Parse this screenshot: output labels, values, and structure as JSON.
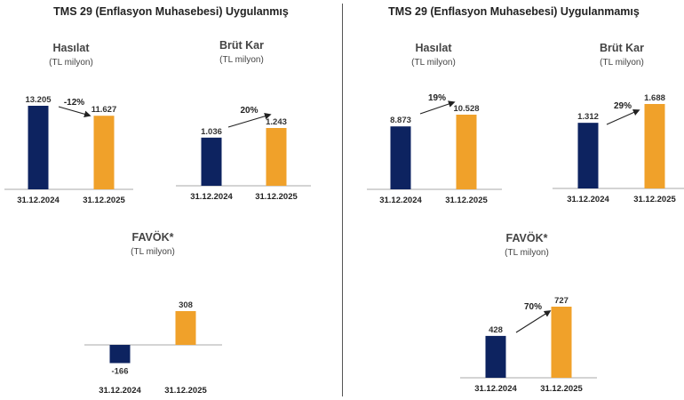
{
  "panels": {
    "left_title": "TMS 29 (Enflasyon Muhasebesi) Uygulanmış",
    "right_title": "TMS 29 (Enflasyon Muhasebesi) Uygulanmamış"
  },
  "colors": {
    "navy": "#0d2360",
    "orange": "#f0a12a",
    "axis": "#aaaaaa",
    "arrow": "#222222"
  },
  "chart_data": [
    {
      "type": "bar",
      "panel": "TMS 29 (Enflasyon Muhasebesi) Uygulanmış",
      "title": "Hasılat",
      "unit": "(TL milyon)",
      "categories": [
        "31.12.2024",
        "31.12.2025"
      ],
      "values": [
        13205,
        11627
      ],
      "value_labels": [
        "13.205",
        "11.627"
      ],
      "change_label": "-12%"
    },
    {
      "type": "bar",
      "panel": "TMS 29 (Enflasyon Muhasebesi) Uygulanmış",
      "title": "Brüt Kar",
      "unit": "(TL milyon)",
      "categories": [
        "31.12.2024",
        "31.12.2025"
      ],
      "values": [
        1036,
        1243
      ],
      "value_labels": [
        "1.036",
        "1.243"
      ],
      "change_label": "20%"
    },
    {
      "type": "bar",
      "panel": "TMS 29 (Enflasyon Muhasebesi) Uygulanmış",
      "title": "FAVÖK*",
      "unit": "(TL milyon)",
      "categories": [
        "31.12.2024",
        "31.12.2025"
      ],
      "values": [
        -166,
        308
      ],
      "value_labels": [
        "-166",
        "308"
      ],
      "change_label": ""
    },
    {
      "type": "bar",
      "panel": "TMS 29 (Enflasyon Muhasebesi) Uygulanmamış",
      "title": "Hasılat",
      "unit": "(TL milyon)",
      "categories": [
        "31.12.2024",
        "31.12.2025"
      ],
      "values": [
        8873,
        10528
      ],
      "value_labels": [
        "8.873",
        "10.528"
      ],
      "change_label": "19%"
    },
    {
      "type": "bar",
      "panel": "TMS 29 (Enflasyon Muhasebesi) Uygulanmamış",
      "title": "Brüt Kar",
      "unit": "(TL milyon)",
      "categories": [
        "31.12.2024",
        "31.12.2025"
      ],
      "values": [
        1312,
        1688
      ],
      "value_labels": [
        "1.312",
        "1.688"
      ],
      "change_label": "29%"
    },
    {
      "type": "bar",
      "panel": "TMS 29 (Enflasyon Muhasebesi) Uygulanmamış",
      "title": "FAVÖK*",
      "unit": "(TL milyon)",
      "categories": [
        "31.12.2024",
        "31.12.2025"
      ],
      "values": [
        428,
        727
      ],
      "value_labels": [
        "428",
        "727"
      ],
      "change_label": "70%"
    }
  ]
}
